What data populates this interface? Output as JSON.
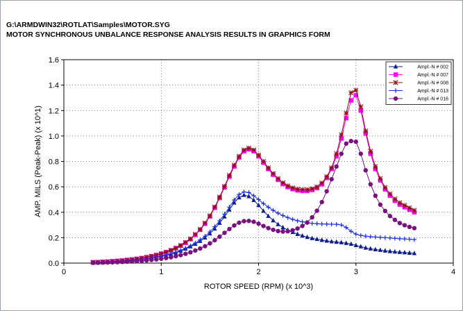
{
  "header": {
    "path": "G:\\ARMDWIN32\\ROTLAT\\Samples\\MOTOR.SYG",
    "title": "MOTOR SYNCHRONOUS UNBALANCE RESPONSE ANALYSIS RESULTS IN GRAPHICS FORM"
  },
  "chart_data": {
    "type": "line",
    "xlabel": "ROTOR SPEED (RPM) (x 10^3)",
    "ylabel": "AMP. MILS (Peak-Peak) (x 10^1)",
    "xlim": [
      0,
      4
    ],
    "ylim": [
      0,
      1.6
    ],
    "xticks": [
      "0",
      "1",
      "2",
      "3",
      "4"
    ],
    "yticks": [
      "0.0",
      "0.2",
      "0.4",
      "0.6",
      "0.8",
      "1.0",
      "1.2",
      "1.4",
      "1.6"
    ],
    "grid": true,
    "legend_position": "top-right",
    "x": [
      0.3,
      0.35,
      0.4,
      0.45,
      0.5,
      0.55,
      0.6,
      0.65,
      0.7,
      0.75,
      0.8,
      0.85,
      0.9,
      0.95,
      1.0,
      1.05,
      1.1,
      1.15,
      1.2,
      1.25,
      1.3,
      1.35,
      1.4,
      1.45,
      1.5,
      1.55,
      1.6,
      1.65,
      1.7,
      1.75,
      1.8,
      1.85,
      1.9,
      1.95,
      2.0,
      2.05,
      2.1,
      2.15,
      2.2,
      2.25,
      2.3,
      2.35,
      2.4,
      2.45,
      2.5,
      2.55,
      2.6,
      2.65,
      2.7,
      2.75,
      2.8,
      2.85,
      2.9,
      2.95,
      3.0,
      3.05,
      3.1,
      3.15,
      3.2,
      3.25,
      3.3,
      3.35,
      3.4,
      3.45,
      3.5,
      3.55,
      3.6
    ],
    "series": [
      {
        "name": "Ampl.-N # 002",
        "color": "#0a1d8a",
        "marker": "triangle",
        "values": [
          0.004,
          0.005,
          0.006,
          0.008,
          0.01,
          0.012,
          0.014,
          0.017,
          0.02,
          0.024,
          0.028,
          0.033,
          0.038,
          0.044,
          0.051,
          0.06,
          0.07,
          0.082,
          0.096,
          0.112,
          0.13,
          0.15,
          0.173,
          0.2,
          0.232,
          0.27,
          0.315,
          0.365,
          0.42,
          0.475,
          0.515,
          0.535,
          0.525,
          0.495,
          0.455,
          0.41,
          0.37,
          0.335,
          0.305,
          0.28,
          0.26,
          0.243,
          0.228,
          0.215,
          0.204,
          0.195,
          0.188,
          0.181,
          0.175,
          0.17,
          0.166,
          0.162,
          0.157,
          0.15,
          0.14,
          0.13,
          0.12,
          0.113,
          0.107,
          0.102,
          0.097,
          0.093,
          0.089,
          0.086,
          0.083,
          0.08,
          0.077
        ]
      },
      {
        "name": "Ampl.-N # 007",
        "color": "#ff00ff",
        "marker": "square",
        "values": [
          0.006,
          0.007,
          0.009,
          0.011,
          0.014,
          0.017,
          0.02,
          0.024,
          0.028,
          0.033,
          0.039,
          0.046,
          0.054,
          0.063,
          0.074,
          0.086,
          0.1,
          0.117,
          0.137,
          0.16,
          0.188,
          0.222,
          0.262,
          0.31,
          0.367,
          0.435,
          0.512,
          0.595,
          0.68,
          0.76,
          0.83,
          0.88,
          0.895,
          0.88,
          0.84,
          0.79,
          0.74,
          0.695,
          0.655,
          0.622,
          0.598,
          0.582,
          0.572,
          0.568,
          0.568,
          0.575,
          0.59,
          0.62,
          0.67,
          0.74,
          0.84,
          0.98,
          1.14,
          1.28,
          1.32,
          1.2,
          1.02,
          0.86,
          0.74,
          0.65,
          0.58,
          0.53,
          0.49,
          0.46,
          0.44,
          0.42,
          0.4
        ]
      },
      {
        "name": "Ampl.-N # 008",
        "color": "#8a1410",
        "marker": "star",
        "values": [
          0.006,
          0.007,
          0.009,
          0.011,
          0.014,
          0.017,
          0.02,
          0.024,
          0.028,
          0.033,
          0.039,
          0.046,
          0.054,
          0.063,
          0.074,
          0.087,
          0.101,
          0.118,
          0.139,
          0.163,
          0.191,
          0.226,
          0.266,
          0.315,
          0.373,
          0.442,
          0.52,
          0.604,
          0.69,
          0.77,
          0.84,
          0.89,
          0.905,
          0.89,
          0.85,
          0.8,
          0.75,
          0.705,
          0.665,
          0.632,
          0.608,
          0.592,
          0.582,
          0.578,
          0.578,
          0.585,
          0.6,
          0.63,
          0.68,
          0.75,
          0.86,
          1.01,
          1.18,
          1.34,
          1.36,
          1.23,
          1.04,
          0.88,
          0.76,
          0.665,
          0.595,
          0.545,
          0.505,
          0.475,
          0.455,
          0.435,
          0.415
        ]
      },
      {
        "name": "Ampl.-N # 013",
        "color": "#1a2ee8",
        "marker": "plus",
        "values": [
          0.004,
          0.005,
          0.006,
          0.008,
          0.01,
          0.012,
          0.015,
          0.018,
          0.021,
          0.025,
          0.029,
          0.034,
          0.04,
          0.046,
          0.054,
          0.063,
          0.073,
          0.086,
          0.1,
          0.117,
          0.136,
          0.158,
          0.183,
          0.212,
          0.246,
          0.287,
          0.333,
          0.385,
          0.44,
          0.497,
          0.54,
          0.56,
          0.555,
          0.53,
          0.5,
          0.468,
          0.44,
          0.415,
          0.393,
          0.374,
          0.358,
          0.344,
          0.333,
          0.325,
          0.318,
          0.313,
          0.31,
          0.308,
          0.307,
          0.306,
          0.305,
          0.3,
          0.28,
          0.25,
          0.228,
          0.218,
          0.212,
          0.208,
          0.205,
          0.202,
          0.2,
          0.198,
          0.195,
          0.192,
          0.19,
          0.188,
          0.185
        ]
      },
      {
        "name": "Ampl.-N # 016",
        "color": "#7a1080",
        "marker": "circle",
        "values": [
          0.002,
          0.003,
          0.004,
          0.005,
          0.006,
          0.007,
          0.009,
          0.011,
          0.013,
          0.015,
          0.018,
          0.021,
          0.025,
          0.029,
          0.034,
          0.04,
          0.046,
          0.054,
          0.063,
          0.073,
          0.085,
          0.099,
          0.115,
          0.133,
          0.155,
          0.18,
          0.208,
          0.238,
          0.268,
          0.296,
          0.318,
          0.33,
          0.332,
          0.325,
          0.31,
          0.292,
          0.275,
          0.262,
          0.252,
          0.248,
          0.25,
          0.258,
          0.272,
          0.292,
          0.32,
          0.36,
          0.412,
          0.48,
          0.565,
          0.66,
          0.76,
          0.86,
          0.94,
          0.96,
          0.955,
          0.86,
          0.73,
          0.62,
          0.53,
          0.46,
          0.41,
          0.37,
          0.34,
          0.315,
          0.298,
          0.285,
          0.275
        ]
      }
    ]
  }
}
